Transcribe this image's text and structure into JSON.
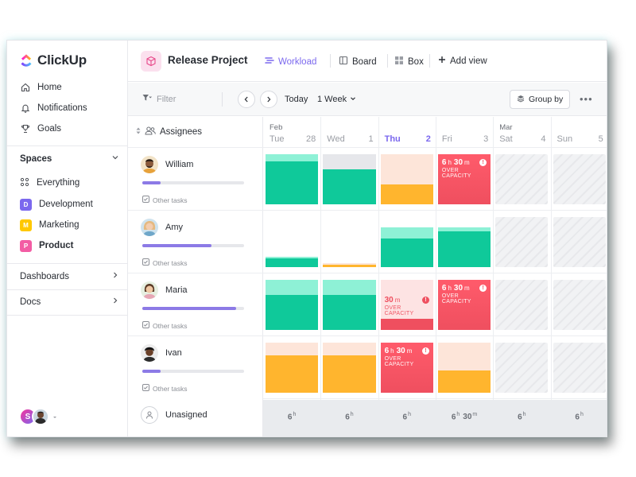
{
  "brand": {
    "name": "ClickUp"
  },
  "sidebar": {
    "nav": [
      {
        "label": "Home",
        "icon": "home-icon"
      },
      {
        "label": "Notifications",
        "icon": "bell-icon"
      },
      {
        "label": "Goals",
        "icon": "trophy-icon"
      }
    ],
    "spaces_title": "Spaces",
    "everything_label": "Everything",
    "spaces": [
      {
        "letter": "D",
        "label": "Development",
        "color": "#7b68ee"
      },
      {
        "letter": "M",
        "label": "Marketing",
        "color": "#ffc800"
      },
      {
        "letter": "P",
        "label": "Product",
        "color": "#f35ca4"
      }
    ],
    "dashboards_label": "Dashboards",
    "docs_label": "Docs",
    "user_initial": "S"
  },
  "header": {
    "project_title": "Release Project",
    "views": [
      {
        "label": "Workload",
        "active": true
      },
      {
        "label": "Board",
        "active": false
      },
      {
        "label": "Box",
        "active": false
      }
    ],
    "add_view_label": "Add view"
  },
  "toolbar": {
    "filter_label": "Filter",
    "today_label": "Today",
    "range_label": "1 Week",
    "group_by_label": "Group by"
  },
  "assignees_header": "Assignees",
  "people": [
    {
      "name": "William",
      "progress": 0.18,
      "other_tasks_label": "Other tasks"
    },
    {
      "name": "Amy",
      "progress": 0.68,
      "other_tasks_label": "Other tasks"
    },
    {
      "name": "Maria",
      "progress": 0.92,
      "other_tasks_label": "Other tasks"
    },
    {
      "name": "Ivan",
      "progress": 0.18,
      "other_tasks_label": "Other tasks"
    }
  ],
  "unassigned_label": "Unasigned",
  "days": [
    {
      "month": "Feb",
      "name": "Tue",
      "date": "28",
      "today": false
    },
    {
      "month": "",
      "name": "Wed",
      "date": "1",
      "today": false
    },
    {
      "month": "",
      "name": "Thu",
      "date": "2",
      "today": true
    },
    {
      "month": "",
      "name": "Fri",
      "date": "3",
      "today": false
    },
    {
      "month": "Mar",
      "name": "Sat",
      "date": "4",
      "today": false
    },
    {
      "month": "",
      "name": "Sun",
      "date": "5",
      "today": false
    }
  ],
  "colors": {
    "green_top": "#8ef1d6",
    "green": "#0fc99a",
    "orange_top": "#fde5d9",
    "orange": "#ffb52e",
    "red": "#ef4f5f",
    "gray_top": "#e6e7eb",
    "accent": "#7b68ee"
  },
  "workload": [
    [
      {
        "kind": "green",
        "level": 0.85
      },
      {
        "kind": "gray-green",
        "level": 0.7
      },
      {
        "kind": "orange",
        "level": 0.4
      },
      {
        "kind": "over",
        "amount_num": "6",
        "amount_unit1": "h",
        "amount_num2": "30",
        "amount_unit2": "m",
        "label": "OVER CAPACITY"
      },
      {
        "kind": "weekend"
      },
      {
        "kind": "weekend"
      }
    ],
    [
      {
        "kind": "green-small",
        "level": 0.2
      },
      {
        "kind": "orange-small",
        "level": 0.08
      },
      {
        "kind": "green",
        "level": 0.72
      },
      {
        "kind": "green",
        "level": 0.9
      },
      {
        "kind": "weekend"
      },
      {
        "kind": "weekend"
      }
    ],
    [
      {
        "kind": "green",
        "level": 0.7
      },
      {
        "kind": "green",
        "level": 0.7
      },
      {
        "kind": "over-low",
        "amount_num": "30",
        "amount_unit1": "m",
        "amount_num2": "",
        "amount_unit2": "",
        "label": "OVER CAPACITY"
      },
      {
        "kind": "over",
        "amount_num": "6",
        "amount_unit1": "h",
        "amount_num2": "30",
        "amount_unit2": "m",
        "label": "OVER CAPACITY"
      },
      {
        "kind": "weekend"
      },
      {
        "kind": "weekend"
      }
    ],
    [
      {
        "kind": "orange",
        "level": 0.75
      },
      {
        "kind": "orange",
        "level": 0.75
      },
      {
        "kind": "over",
        "amount_num": "6",
        "amount_unit1": "h",
        "amount_num2": "30",
        "amount_unit2": "m",
        "label": "OVER CAPACITY"
      },
      {
        "kind": "orange",
        "level": 0.45
      },
      {
        "kind": "weekend"
      },
      {
        "kind": "weekend"
      }
    ]
  ],
  "totals": [
    {
      "num": "6",
      "unit": "h",
      "num2": "",
      "unit2": ""
    },
    {
      "num": "6",
      "unit": "h",
      "num2": "",
      "unit2": ""
    },
    {
      "num": "6",
      "unit": "h",
      "num2": "",
      "unit2": ""
    },
    {
      "num": "6",
      "unit": "h",
      "num2": "30",
      "unit2": "m"
    },
    {
      "num": "6",
      "unit": "h",
      "num2": "",
      "unit2": ""
    },
    {
      "num": "6",
      "unit": "h",
      "num2": "",
      "unit2": ""
    }
  ]
}
